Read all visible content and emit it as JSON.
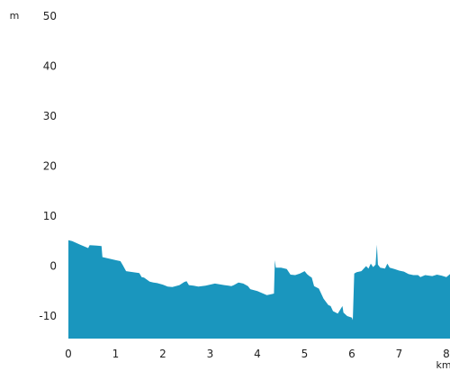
{
  "chart_data": {
    "type": "area",
    "title": "",
    "xlabel": "",
    "ylabel": "",
    "x_unit": "km",
    "y_unit": "m",
    "xlim": [
      0,
      8
    ],
    "ylim": [
      -14.5,
      50
    ],
    "x_ticks": [
      "0",
      "1",
      "2",
      "3",
      "4",
      "5",
      "6",
      "7",
      "8"
    ],
    "y_ticks": [
      "50",
      "40",
      "30",
      "20",
      "10",
      "0",
      "-10"
    ],
    "grid": false,
    "legend": "none",
    "fill_color": "#1a96be",
    "series": [
      {
        "x": [
          0,
          0.08,
          0.25,
          0.42,
          0.45,
          0.6,
          0.7,
          0.72,
          1.0,
          1.1,
          1.15,
          1.22,
          1.5,
          1.55,
          1.6,
          1.72,
          1.8,
          1.88,
          2.0,
          2.1,
          2.2,
          2.35,
          2.45,
          2.5,
          2.55,
          2.65,
          2.75,
          2.9,
          3.1,
          3.3,
          3.45,
          3.5,
          3.6,
          3.7,
          3.8,
          3.85,
          4.0,
          4.2,
          4.3,
          4.35,
          4.37,
          4.39,
          4.5,
          4.62,
          4.7,
          4.8,
          4.9,
          5.0,
          5.05,
          5.1,
          5.15,
          5.2,
          5.3,
          5.4,
          5.5,
          5.55,
          5.6,
          5.7,
          5.8,
          5.82,
          5.9,
          6.0,
          6.02,
          6.05,
          6.1,
          6.2,
          6.22,
          6.3,
          6.35,
          6.4,
          6.45,
          6.5,
          6.53,
          6.55,
          6.6,
          6.7,
          6.75,
          6.8,
          6.9,
          7.0,
          7.1,
          7.2,
          7.3,
          7.4,
          7.45,
          7.55,
          7.7,
          7.8,
          7.9,
          8.0,
          8.1,
          8.2
        ],
        "y": [
          5.2,
          5.0,
          4.3,
          3.6,
          4.2,
          4.1,
          4.0,
          1.8,
          1.2,
          1.0,
          0.2,
          -1.0,
          -1.4,
          -2.2,
          -2.3,
          -3.1,
          -3.3,
          -3.4,
          -3.7,
          -4.1,
          -4.2,
          -3.8,
          -3.2,
          -3.0,
          -3.8,
          -3.9,
          -4.1,
          -3.9,
          -3.5,
          -3.8,
          -4.0,
          -3.8,
          -3.3,
          -3.5,
          -4.0,
          -4.6,
          -5.0,
          -5.8,
          -5.6,
          -5.5,
          1.2,
          -0.3,
          -0.3,
          -0.6,
          -1.7,
          -1.8,
          -1.5,
          -1.0,
          -1.6,
          -2.0,
          -2.3,
          -4.0,
          -4.5,
          -6.5,
          -7.8,
          -8.0,
          -9.0,
          -9.5,
          -8.0,
          -9.3,
          -10.0,
          -10.3,
          -10.8,
          -1.5,
          -1.2,
          -1.0,
          -0.8,
          0.0,
          -0.5,
          0.5,
          -0.2,
          0.3,
          4.3,
          0.3,
          -0.3,
          -0.5,
          0.5,
          -0.3,
          -0.6,
          -0.9,
          -1.1,
          -1.6,
          -1.8,
          -1.8,
          -2.2,
          -1.8,
          -2.0,
          -1.7,
          -1.9,
          -2.2,
          -1.6,
          -1.6
        ]
      }
    ]
  }
}
